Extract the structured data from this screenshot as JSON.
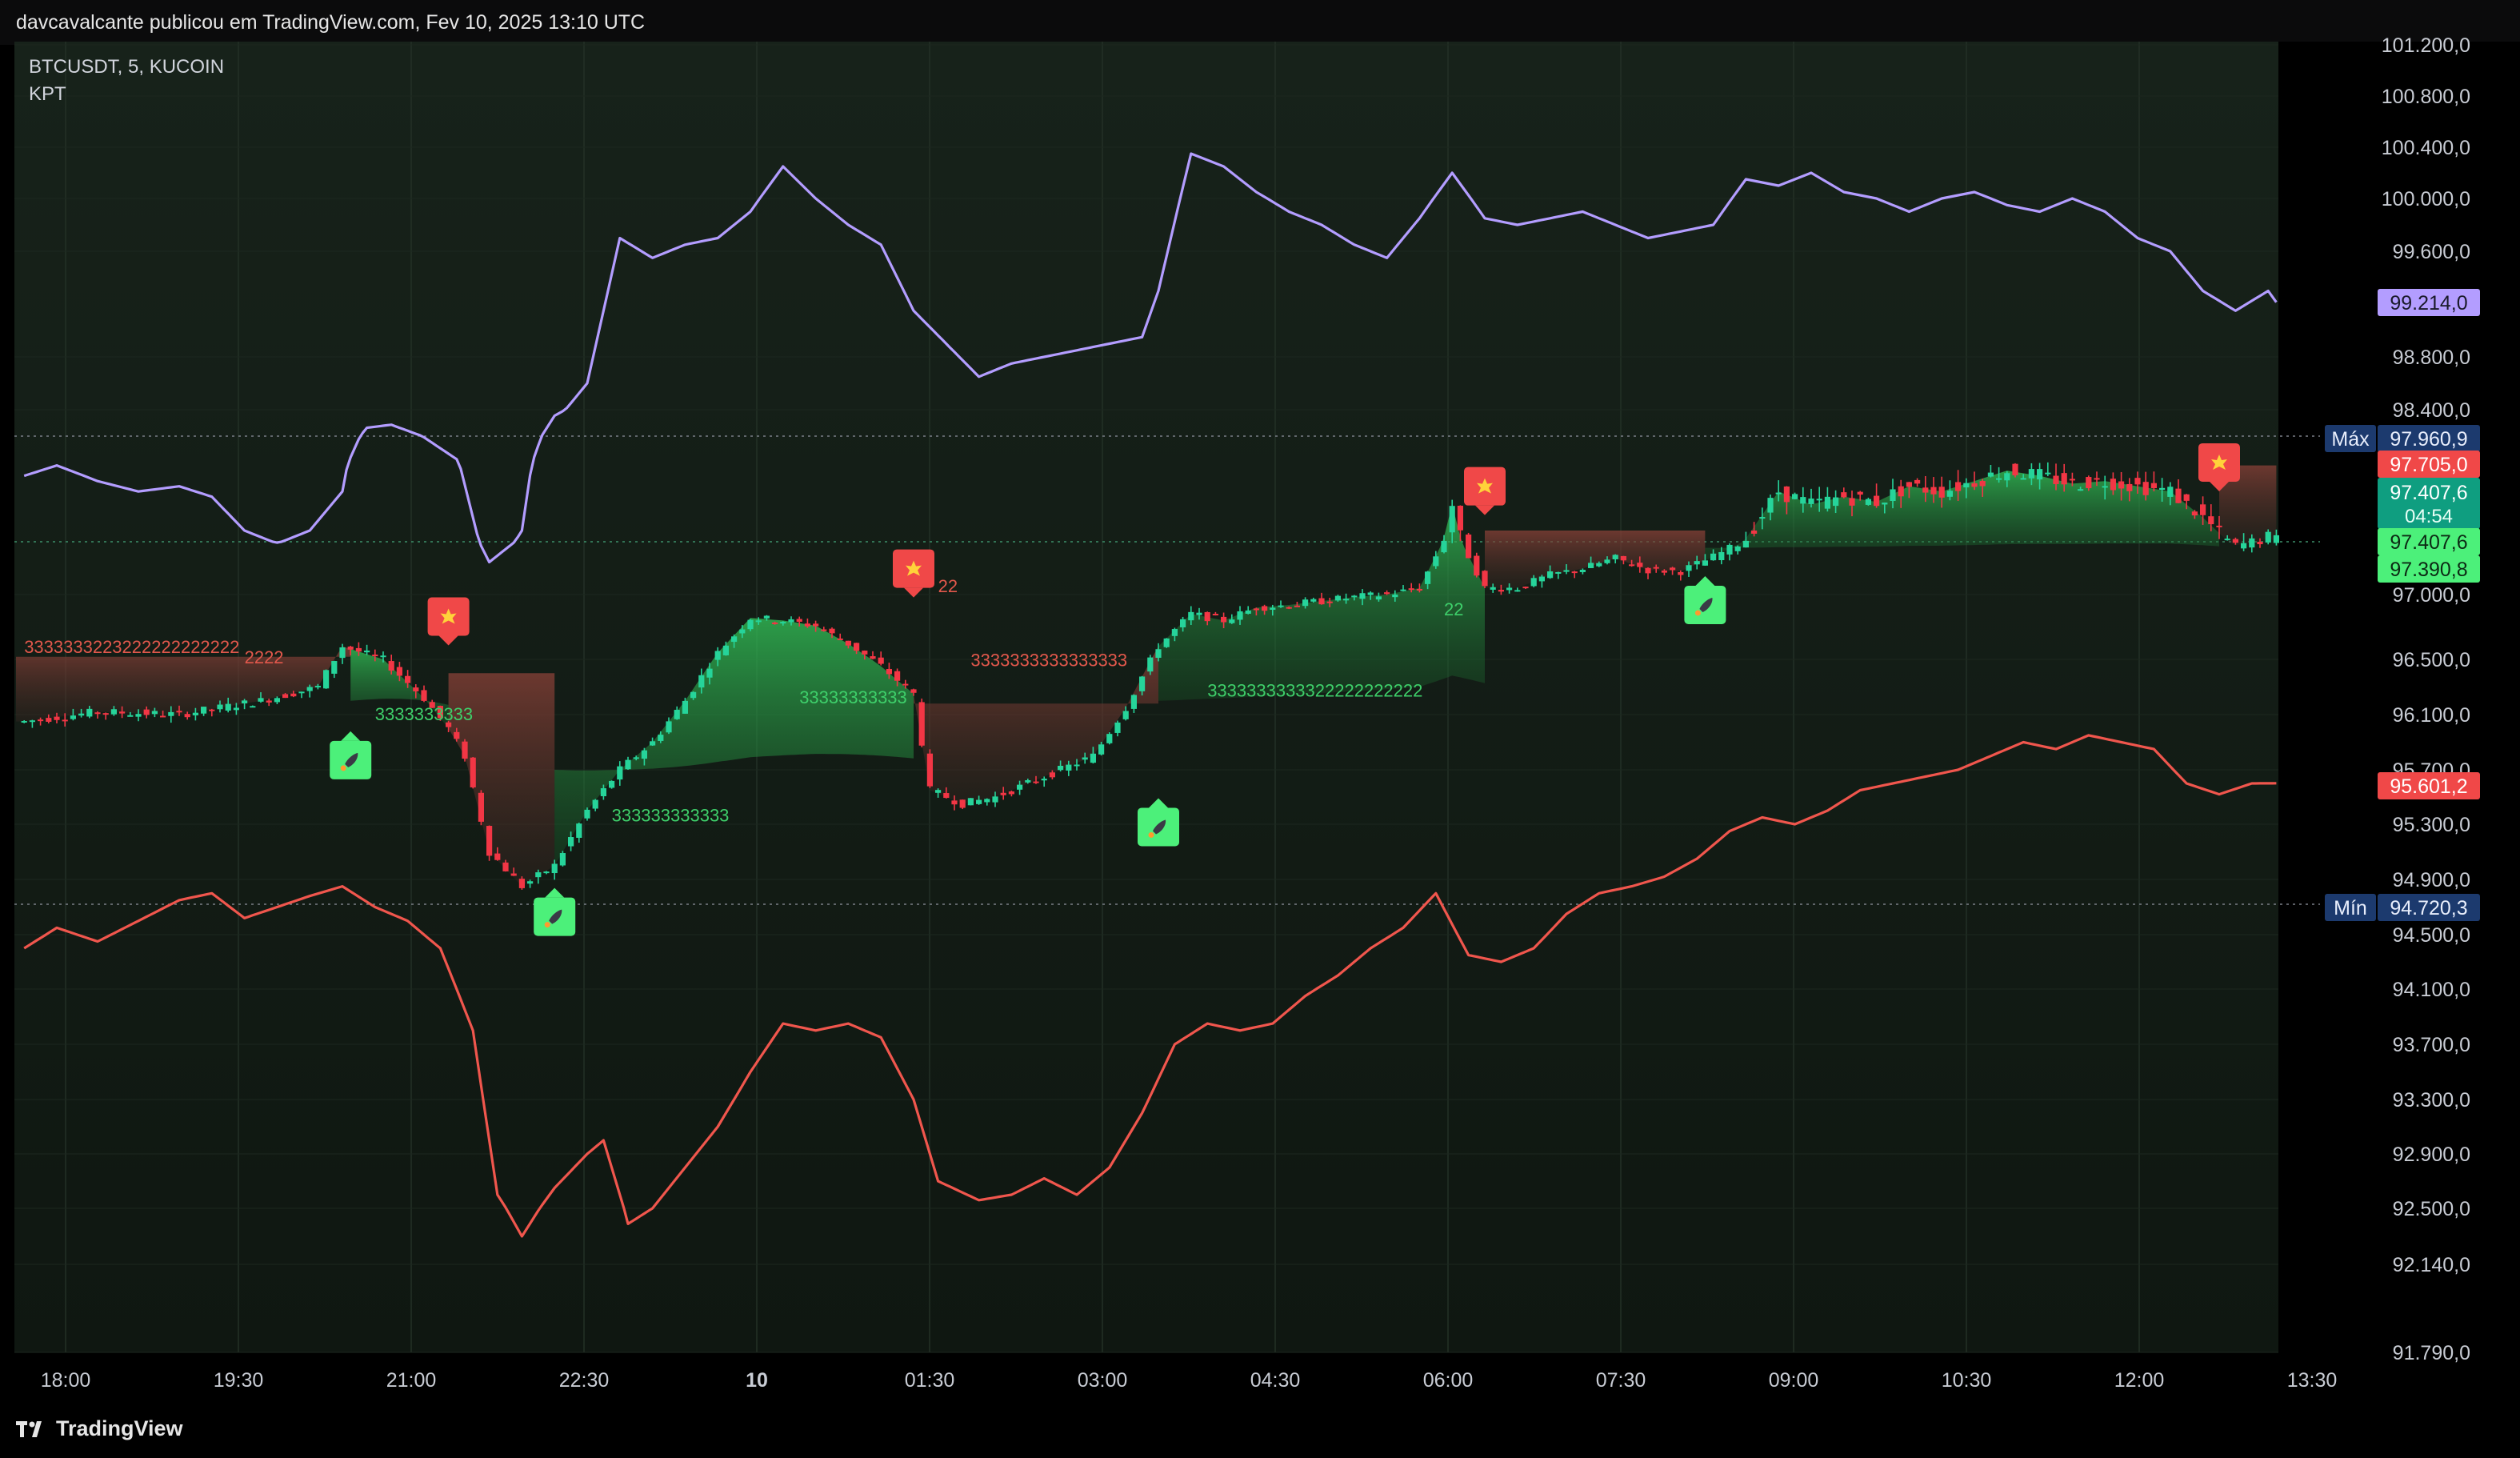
{
  "header": {
    "published": "davcavalcante publicou em TradingView.com, Fev 10, 2025 13:10 UTC"
  },
  "legend": {
    "symbol": "BTCUSDT, 5, KUCOIN",
    "indicator": "KPT"
  },
  "footer": {
    "brand": "TradingView"
  },
  "colors": {
    "background": "#131d16",
    "up": "#26d49a",
    "down": "#f23645",
    "upper_band": "#b39dff",
    "lower_band": "#f0564d",
    "green_cloud": "#2fa453",
    "red_cloud": "#7a3b33",
    "buy_signal": "#4cf07a",
    "sell_signal": "#f04848",
    "max_label": "#1c3a6e"
  },
  "icons": {
    "buy": "rocket-icon",
    "sell": "explosion-icon"
  },
  "chart_data": {
    "type": "line",
    "title": "",
    "x_ticks": [
      "18:00",
      "19:30",
      "21:00",
      "22:30",
      "10",
      "01:30",
      "03:00",
      "04:30",
      "06:00",
      "07:30",
      "09:00",
      "10:30",
      "12:00",
      "13:30"
    ],
    "y_ticks": [
      "101.200,0",
      "100.800,0",
      "100.400,0",
      "100.000,0",
      "99.600,0",
      "98.800,0",
      "98.400,0",
      "97.000,0",
      "96.500,0",
      "96.100,0",
      "95.700,0",
      "95.300,0",
      "94.900,0",
      "94.500,0",
      "94.100,0",
      "93.700,0",
      "93.300,0",
      "92.900,0",
      "92.500,0",
      "92.140,0",
      "91.790,0"
    ],
    "y_scale": "non-linear (indicator-scaled)",
    "grid": true,
    "price_labels": {
      "upper": "99.214,0",
      "max_tag": "Máx",
      "max_value": "97.960,9",
      "sell_level": "97.705,0",
      "last_price": "97.407,6",
      "countdown": "04:54",
      "last_price_2": "97.407,6",
      "support": "97.390,8",
      "lower": "95.601,2",
      "min_tag": "Mín",
      "min_value": "94.720,3"
    },
    "series": [
      {
        "role": "price",
        "points": [
          [
            1,
            96050
          ],
          [
            10,
            96120
          ],
          [
            20,
            96100
          ],
          [
            30,
            96200
          ],
          [
            37,
            96300
          ],
          [
            40,
            96600
          ],
          [
            45,
            96500
          ],
          [
            50,
            96220
          ],
          [
            53,
            96000
          ],
          [
            55,
            95800
          ],
          [
            58,
            95100
          ],
          [
            62,
            94850
          ],
          [
            66,
            95000
          ],
          [
            70,
            95400
          ],
          [
            74,
            95700
          ],
          [
            78,
            95900
          ],
          [
            82,
            96200
          ],
          [
            86,
            96550
          ],
          [
            90,
            96820
          ],
          [
            94,
            96800
          ],
          [
            98,
            96760
          ],
          [
            102,
            96620
          ],
          [
            106,
            96450
          ],
          [
            110,
            96250
          ],
          [
            112,
            95550
          ],
          [
            116,
            95450
          ],
          [
            120,
            95500
          ],
          [
            126,
            95650
          ],
          [
            132,
            95800
          ],
          [
            136,
            96150
          ],
          [
            140,
            96600
          ],
          [
            144,
            96850
          ],
          [
            148,
            96800
          ],
          [
            152,
            96900
          ],
          [
            156,
            96920
          ],
          [
            160,
            96950
          ],
          [
            164,
            96980
          ],
          [
            168,
            97000
          ],
          [
            172,
            97050
          ],
          [
            176,
            97550
          ],
          [
            180,
            97050
          ],
          [
            184,
            97050
          ],
          [
            188,
            97150
          ],
          [
            192,
            97200
          ],
          [
            196,
            97280
          ],
          [
            200,
            97190
          ],
          [
            204,
            97180
          ],
          [
            208,
            97290
          ],
          [
            212,
            97420
          ],
          [
            216,
            97600
          ],
          [
            220,
            97550
          ],
          [
            224,
            97580
          ],
          [
            228,
            97560
          ],
          [
            232,
            97620
          ],
          [
            236,
            97600
          ],
          [
            240,
            97640
          ],
          [
            244,
            97680
          ],
          [
            248,
            97660
          ],
          [
            252,
            97630
          ],
          [
            256,
            97640
          ],
          [
            260,
            97620
          ],
          [
            264,
            97600
          ],
          [
            268,
            97500
          ],
          [
            272,
            97380
          ],
          [
            276,
            97420
          ],
          [
            277,
            97410
          ]
        ]
      },
      {
        "role": "upper_band",
        "points": [
          [
            1,
            97660
          ],
          [
            5,
            97700
          ],
          [
            10,
            97640
          ],
          [
            15,
            97600
          ],
          [
            20,
            97620
          ],
          [
            24,
            97580
          ],
          [
            28,
            97450
          ],
          [
            32,
            97400
          ],
          [
            36,
            97450
          ],
          [
            40,
            97600
          ],
          [
            43,
            98100
          ],
          [
            46,
            98150
          ],
          [
            50,
            97950
          ],
          [
            54,
            97750
          ],
          [
            58,
            97250
          ],
          [
            62,
            97450
          ],
          [
            66,
            98300
          ],
          [
            70,
            98600
          ],
          [
            74,
            99700
          ],
          [
            78,
            99550
          ],
          [
            82,
            99650
          ],
          [
            86,
            99700
          ],
          [
            90,
            99900
          ],
          [
            94,
            100250
          ],
          [
            98,
            100000
          ],
          [
            102,
            99800
          ],
          [
            106,
            99650
          ],
          [
            110,
            99150
          ],
          [
            114,
            98900
          ],
          [
            118,
            98650
          ],
          [
            122,
            98750
          ],
          [
            126,
            98800
          ],
          [
            130,
            98850
          ],
          [
            134,
            98900
          ],
          [
            138,
            98950
          ],
          [
            140,
            99300
          ],
          [
            144,
            100350
          ],
          [
            148,
            100250
          ],
          [
            152,
            100050
          ],
          [
            156,
            99900
          ],
          [
            160,
            99800
          ],
          [
            164,
            99650
          ],
          [
            168,
            99550
          ],
          [
            172,
            99850
          ],
          [
            176,
            100200
          ],
          [
            180,
            99850
          ],
          [
            184,
            99800
          ],
          [
            188,
            99850
          ],
          [
            192,
            99900
          ],
          [
            196,
            99800
          ],
          [
            200,
            99700
          ],
          [
            204,
            99750
          ],
          [
            208,
            99800
          ],
          [
            212,
            100150
          ],
          [
            216,
            100100
          ],
          [
            220,
            100200
          ],
          [
            224,
            100050
          ],
          [
            228,
            100000
          ],
          [
            232,
            99900
          ],
          [
            236,
            100000
          ],
          [
            240,
            100050
          ],
          [
            244,
            99950
          ],
          [
            248,
            99900
          ],
          [
            252,
            100000
          ],
          [
            256,
            99900
          ],
          [
            260,
            99700
          ],
          [
            264,
            99600
          ],
          [
            268,
            99300
          ],
          [
            272,
            99150
          ],
          [
            276,
            99300
          ],
          [
            277,
            99214
          ]
        ]
      },
      {
        "role": "lower_band",
        "points": [
          [
            1,
            94400
          ],
          [
            5,
            94550
          ],
          [
            10,
            94450
          ],
          [
            15,
            94600
          ],
          [
            20,
            94750
          ],
          [
            24,
            94800
          ],
          [
            28,
            94620
          ],
          [
            32,
            94700
          ],
          [
            36,
            94780
          ],
          [
            40,
            94850
          ],
          [
            44,
            94700
          ],
          [
            48,
            94600
          ],
          [
            52,
            94400
          ],
          [
            56,
            93800
          ],
          [
            59,
            92600
          ],
          [
            62,
            92320
          ],
          [
            66,
            92650
          ],
          [
            70,
            92900
          ],
          [
            72,
            93000
          ],
          [
            75,
            92400
          ],
          [
            78,
            92500
          ],
          [
            82,
            92800
          ],
          [
            86,
            93100
          ],
          [
            90,
            93500
          ],
          [
            94,
            93850
          ],
          [
            98,
            93800
          ],
          [
            102,
            93850
          ],
          [
            106,
            93750
          ],
          [
            110,
            93300
          ],
          [
            113,
            92700
          ],
          [
            118,
            92560
          ],
          [
            122,
            92600
          ],
          [
            126,
            92720
          ],
          [
            130,
            92600
          ],
          [
            134,
            92800
          ],
          [
            138,
            93200
          ],
          [
            142,
            93700
          ],
          [
            146,
            93850
          ],
          [
            150,
            93800
          ],
          [
            154,
            93850
          ],
          [
            158,
            94050
          ],
          [
            162,
            94200
          ],
          [
            166,
            94400
          ],
          [
            170,
            94550
          ],
          [
            174,
            94800
          ],
          [
            178,
            94350
          ],
          [
            182,
            94300
          ],
          [
            186,
            94400
          ],
          [
            190,
            94650
          ],
          [
            194,
            94800
          ],
          [
            198,
            94850
          ],
          [
            202,
            94920
          ],
          [
            206,
            95050
          ],
          [
            210,
            95250
          ],
          [
            214,
            95350
          ],
          [
            218,
            95300
          ],
          [
            222,
            95400
          ],
          [
            226,
            95550
          ],
          [
            230,
            95600
          ],
          [
            234,
            95650
          ],
          [
            238,
            95700
          ],
          [
            242,
            95800
          ],
          [
            246,
            95900
          ],
          [
            250,
            95850
          ],
          [
            254,
            95950
          ],
          [
            258,
            95900
          ],
          [
            262,
            95850
          ],
          [
            266,
            95600
          ],
          [
            270,
            95520
          ],
          [
            274,
            95600
          ],
          [
            277,
            95601
          ]
        ]
      }
    ],
    "signals": [
      {
        "type": "buy",
        "index": 41,
        "price": 95770
      },
      {
        "type": "sell",
        "index": 53,
        "price": 96830
      },
      {
        "type": "buy",
        "index": 66,
        "price": 94630
      },
      {
        "type": "sell",
        "index": 110,
        "price": 97200
      },
      {
        "type": "buy",
        "index": 140,
        "price": 95280
      },
      {
        "type": "sell",
        "index": 180,
        "price": 97620
      },
      {
        "type": "buy",
        "index": 207,
        "price": 96920
      },
      {
        "type": "sell",
        "index": 270,
        "price": 97720
      }
    ],
    "count_labels": [
      {
        "text": "3333333223222222222222",
        "color": "down",
        "index": 1,
        "price": 96550
      },
      {
        "text": "2222",
        "color": "down",
        "index": 28,
        "price": 96470
      },
      {
        "text": "3333333333",
        "color": "up",
        "index": 44,
        "price": 96060
      },
      {
        "text": "333333333333",
        "color": "up",
        "index": 73,
        "price": 95320
      },
      {
        "text": "3333333333333333",
        "color": "down",
        "index": 117,
        "price": 96450
      },
      {
        "text": "33333333333",
        "color": "up",
        "index": 96,
        "price": 96180
      },
      {
        "text": "3333333333322222222222",
        "color": "up",
        "index": 146,
        "price": 96230
      },
      {
        "text": "22",
        "color": "down",
        "index": 113,
        "price": 97020
      },
      {
        "text": "22",
        "color": "up",
        "index": 175,
        "price": 96840
      }
    ]
  }
}
